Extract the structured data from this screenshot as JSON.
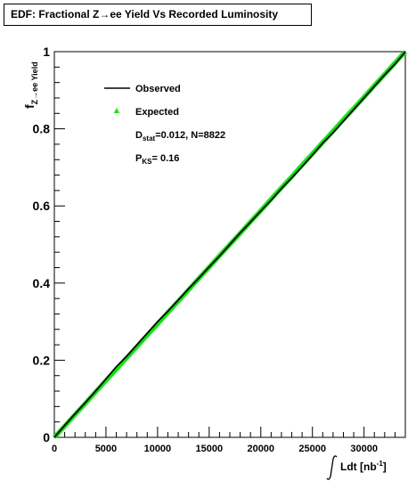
{
  "chart_data": {
    "type": "line",
    "title": "EDF: Fractional Z→ee Yield Vs Recorded Luminosity",
    "ylabel": {
      "main": "f",
      "sub": "Z→ee Yield"
    },
    "xlabel": {
      "main": "Ldt [nb",
      "sup": "-1",
      "close": "]"
    },
    "xlim": [
      0,
      34000
    ],
    "ylim": [
      0,
      1
    ],
    "xticks": [
      0,
      5000,
      10000,
      15000,
      20000,
      25000,
      30000
    ],
    "xtick_labels": [
      "0",
      "5000",
      "10000",
      "15000",
      "20000",
      "25000",
      "30000"
    ],
    "yticks": [
      0,
      0.2,
      0.4,
      0.6,
      0.8,
      1
    ],
    "ytick_labels": [
      "0",
      "0.2",
      "0.4",
      "0.6",
      "0.8",
      "1"
    ],
    "grid": false,
    "legend_position": "top-left",
    "series": [
      {
        "name": "Observed",
        "color": "#000000",
        "x": [
          0,
          1000,
          2000,
          3000,
          4000,
          5000,
          6000,
          7000,
          8000,
          9000,
          10000,
          11000,
          12000,
          13000,
          14000,
          15000,
          16000,
          17000,
          18000,
          19000,
          20000,
          21000,
          22000,
          23000,
          24000,
          25000,
          26000,
          27000,
          28000,
          29000,
          30000,
          31000,
          32000,
          33000,
          34000
        ],
        "y": [
          0,
          0.031,
          0.061,
          0.09,
          0.12,
          0.151,
          0.183,
          0.21,
          0.24,
          0.27,
          0.3,
          0.327,
          0.356,
          0.385,
          0.413,
          0.442,
          0.47,
          0.5,
          0.53,
          0.558,
          0.587,
          0.615,
          0.645,
          0.673,
          0.702,
          0.732,
          0.763,
          0.79,
          0.82,
          0.85,
          0.88,
          0.91,
          0.94,
          0.968,
          1
        ]
      },
      {
        "name": "Expected",
        "color": "#00ee00",
        "x": [
          0,
          1000,
          2000,
          3000,
          4000,
          5000,
          6000,
          7000,
          8000,
          9000,
          10000,
          11000,
          12000,
          13000,
          14000,
          15000,
          16000,
          17000,
          18000,
          19000,
          20000,
          21000,
          22000,
          23000,
          24000,
          25000,
          26000,
          27000,
          28000,
          29000,
          30000,
          31000,
          32000,
          33000,
          34000
        ],
        "y": [
          0,
          0.029,
          0.059,
          0.088,
          0.118,
          0.147,
          0.176,
          0.206,
          0.235,
          0.265,
          0.294,
          0.324,
          0.353,
          0.382,
          0.412,
          0.441,
          0.471,
          0.5,
          0.529,
          0.559,
          0.588,
          0.618,
          0.647,
          0.676,
          0.706,
          0.735,
          0.765,
          0.794,
          0.824,
          0.853,
          0.882,
          0.912,
          0.941,
          0.971,
          1
        ]
      }
    ],
    "annotations": {
      "dstat_label": "D",
      "dstat_sub": "stat",
      "dstat_value": "=0.012, N=8822",
      "pks_label": "P",
      "pks_sub": "KS",
      "pks_value": "= 0.16"
    }
  }
}
